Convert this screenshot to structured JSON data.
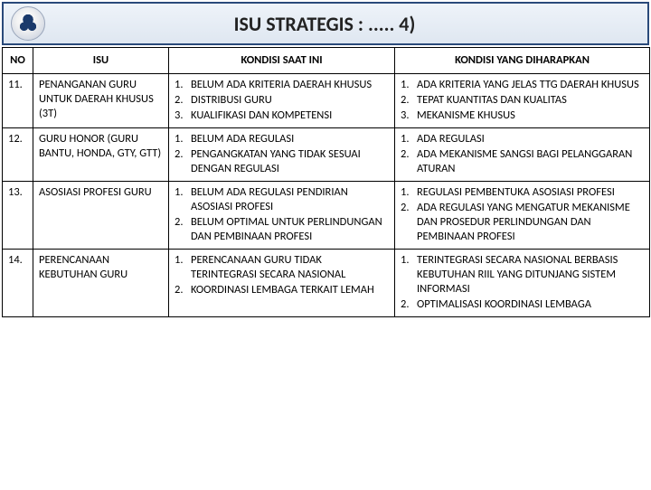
{
  "header": {
    "title": "ISU STRATEGIS : ..... 4)"
  },
  "columns": {
    "no": "NO",
    "isu": "ISU",
    "kondisi_ini": "KONDISI SAAT INI",
    "kondisi_harapan": "KONDISI YANG DIHARAPKAN"
  },
  "rows": [
    {
      "no": "11.",
      "isu": "PENANGANAN GURU UNTUK DAERAH KHUSUS (3T)",
      "kondisi_ini": [
        "BELUM ADA KRITERIA DAERAH KHUSUS",
        "DISTRIBUSI GURU",
        "KUALIFIKASI DAN KOMPETENSI"
      ],
      "kondisi_harapan": [
        "ADA KRITERIA YANG JELAS TTG DAERAH KHUSUS",
        "TEPAT KUANTITAS DAN KUALITAS",
        "MEKANISME KHUSUS"
      ]
    },
    {
      "no": "12.",
      "isu": "GURU HONOR (GURU BANTU, HONDA, GTY, GTT)",
      "kondisi_ini": [
        "BELUM ADA REGULASI",
        "PENGANGKATAN YANG TIDAK SESUAI DENGAN REGULASI"
      ],
      "kondisi_harapan": [
        "ADA REGULASI",
        "ADA MEKANISME SANGSI BAGI PELANGGARAN ATURAN"
      ]
    },
    {
      "no": "13.",
      "isu": "ASOSIASI PROFESI GURU",
      "kondisi_ini": [
        "BELUM ADA REGULASI PENDIRIAN ASOSIASI PROFESI",
        "BELUM OPTIMAL UNTUK PERLINDUNGAN DAN PEMBINAAN PROFESI"
      ],
      "kondisi_harapan": [
        "REGULASI PEMBENTUKA ASOSIASI PROFESI",
        "ADA REGULASI YANG MENGATUR MEKANISME DAN PROSEDUR PERLINDUNGAN DAN PEMBINAAN PROFESI"
      ]
    },
    {
      "no": "14.",
      "isu": "PERENCANAAN KEBUTUHAN GURU",
      "kondisi_ini": [
        "PERENCANAAN GURU TIDAK TERINTEGRASI SECARA NASIONAL",
        "KOORDINASI LEMBAGA TERKAIT LEMAH"
      ],
      "kondisi_harapan": [
        "TERINTEGRASI SECARA NASIONAL BERBASIS KEBUTUHAN RIIL YANG DITUNJANG SISTEM INFORMASI",
        "OPTIMALISASI KOORDINASI LEMBAGA"
      ]
    }
  ]
}
